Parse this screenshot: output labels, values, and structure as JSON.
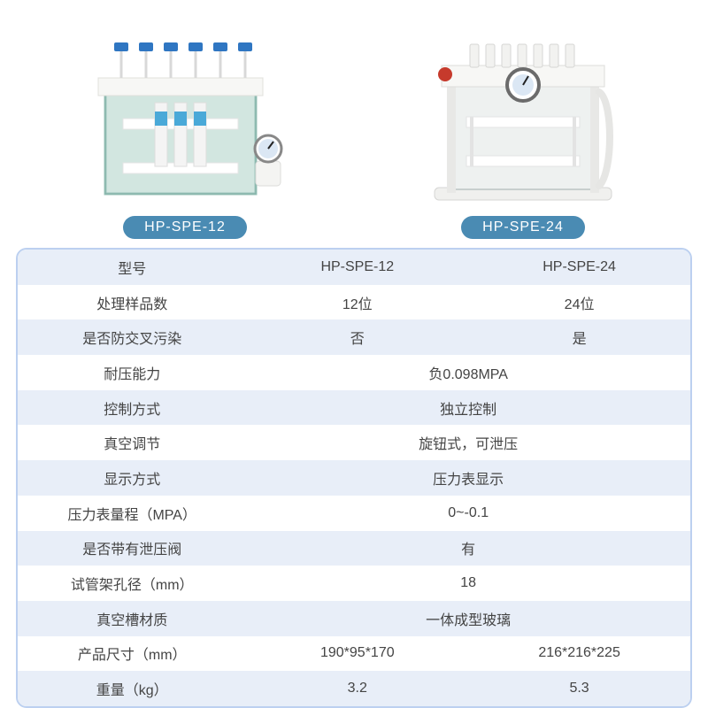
{
  "products": [
    {
      "badge": "HP-SPE-12"
    },
    {
      "badge": "HP-SPE-24"
    }
  ],
  "colors": {
    "badge_bg": "#4a8bb3",
    "card_border": "#bcd0f0",
    "row_stripe": "#e8eef8",
    "text": "#444444"
  },
  "table": {
    "rows": [
      {
        "label": "型号",
        "a": "HP-SPE-12",
        "b": "HP-SPE-24",
        "merged": false,
        "striped": true
      },
      {
        "label": "处理样品数",
        "a": "12位",
        "b": "24位",
        "merged": false,
        "striped": false
      },
      {
        "label": "是否防交叉污染",
        "a": "否",
        "b": "是",
        "merged": false,
        "striped": true
      },
      {
        "label": "耐压能力",
        "m": "负0.098MPA",
        "merged": true,
        "striped": false
      },
      {
        "label": "控制方式",
        "m": "独立控制",
        "merged": true,
        "striped": true
      },
      {
        "label": "真空调节",
        "m": "旋钮式，可泄压",
        "merged": true,
        "striped": false
      },
      {
        "label": "显示方式",
        "m": "压力表显示",
        "merged": true,
        "striped": true
      },
      {
        "label": "压力表量程（MPA）",
        "m": "0~-0.1",
        "merged": true,
        "striped": false
      },
      {
        "label": "是否带有泄压阀",
        "m": "有",
        "merged": true,
        "striped": true
      },
      {
        "label": "试管架孔径（mm）",
        "m": "18",
        "merged": true,
        "striped": false
      },
      {
        "label": "真空槽材质",
        "m": "一体成型玻璃",
        "merged": true,
        "striped": true
      },
      {
        "label": "产品尺寸（mm）",
        "a": "190*95*170",
        "b": "216*216*225",
        "merged": false,
        "striped": false
      },
      {
        "label": "重量（kg）",
        "a": "3.2",
        "b": "5.3",
        "merged": false,
        "striped": true
      }
    ]
  }
}
